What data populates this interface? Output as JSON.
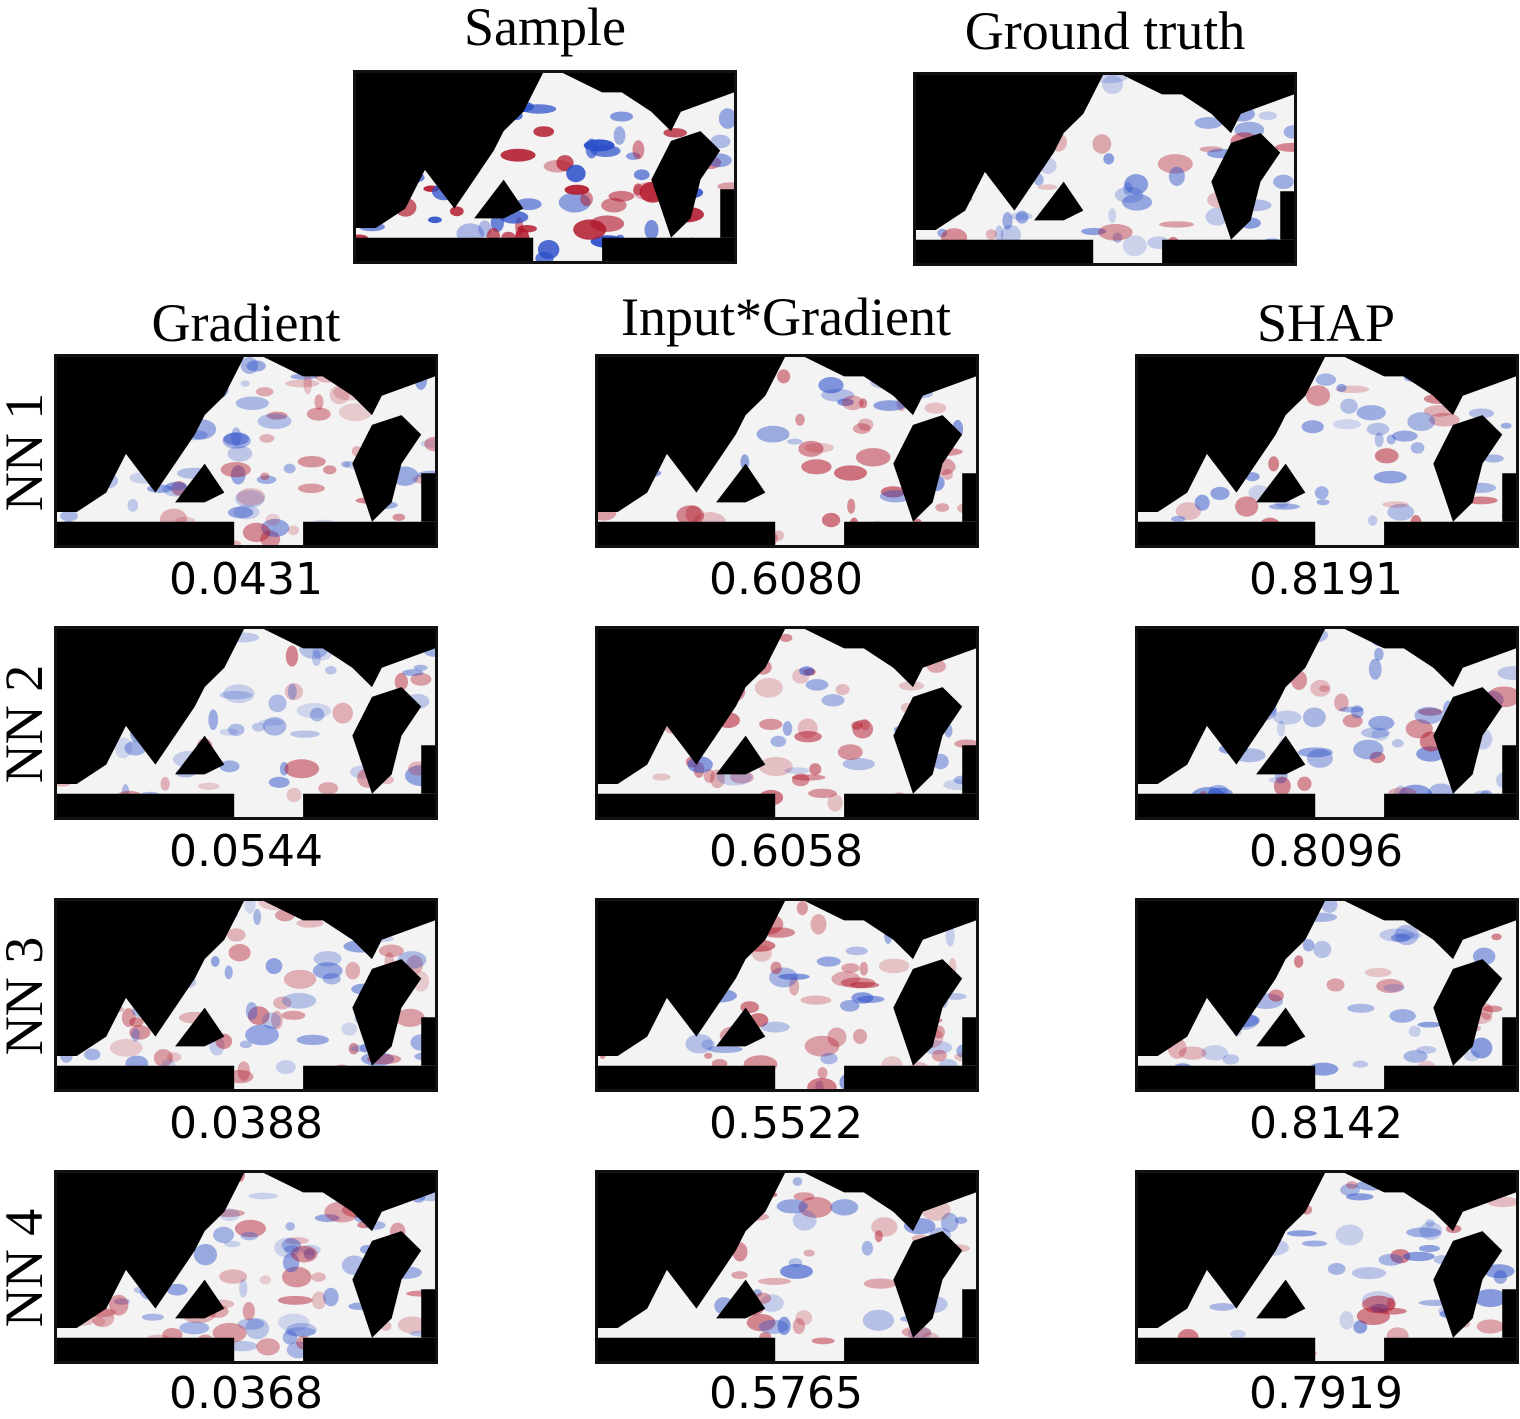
{
  "titles": {
    "sample": "Sample",
    "ground_truth": "Ground truth",
    "gradient": "Gradient",
    "input_gradient": "Input*Gradient",
    "shap": "SHAP"
  },
  "rows": [
    {
      "label": "NN 1",
      "scores": [
        "0.0431",
        "0.6080",
        "0.8191"
      ]
    },
    {
      "label": "NN 2",
      "scores": [
        "0.0544",
        "0.6058",
        "0.8096"
      ]
    },
    {
      "label": "NN 3",
      "scores": [
        "0.0388",
        "0.5522",
        "0.8142"
      ]
    },
    {
      "label": "NN 4",
      "scores": [
        "0.0368",
        "0.5765",
        "0.7919"
      ]
    }
  ],
  "colors": {
    "positive": "#b2182b",
    "negative": "#2b4fc9",
    "neutral": "#f3f3f3",
    "mask": "#000000"
  }
}
